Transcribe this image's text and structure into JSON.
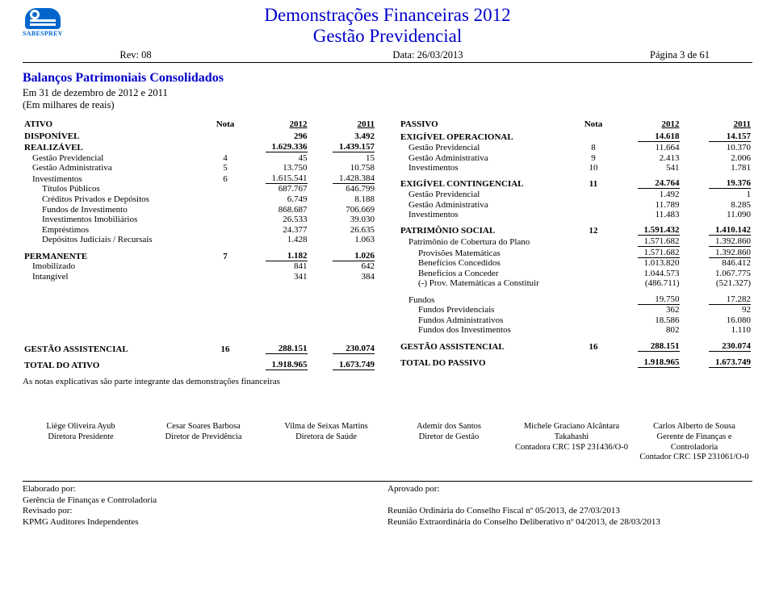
{
  "header": {
    "logo_text": "SABESPREV",
    "title1": "Demonstrações Financeiras 2012",
    "title2": "Gestão Previdencial",
    "rev": "Rev: 08",
    "data": "Data: 26/03/2013",
    "page": "Página 3 de 61"
  },
  "subtitle": "Balanços Patrimoniais Consolidados",
  "sub_line1": "Em 31 de dezembro de 2012 e 2011",
  "sub_line2": "(Em milhares de reais)",
  "ativo": {
    "head": {
      "c1": "ATIVO",
      "c2": "Nota",
      "c3": "2012",
      "c4": "2011"
    },
    "rows": [
      {
        "l": "DISPONÍVEL",
        "n": "",
        "a": "296",
        "b": "3.492",
        "bold": true
      },
      {
        "l": "REALIZÁVEL",
        "n": "",
        "a": "1.629.336",
        "b": "1.439.157",
        "bold": true,
        "ul": true
      },
      {
        "l": "Gestão Previdencial",
        "n": "4",
        "a": "45",
        "b": "15",
        "ind": 1
      },
      {
        "l": "Gestão Administrativa",
        "n": "5",
        "a": "13.750",
        "b": "10.758",
        "ind": 1
      },
      {
        "l": "Investimentos",
        "n": "6",
        "a": "1.615.541",
        "b": "1.428.384",
        "ind": 1,
        "ul": true
      },
      {
        "l": "Títulos Públicos",
        "n": "",
        "a": "687.767",
        "b": "646.799",
        "ind": 2
      },
      {
        "l": "Créditos Privados e Depósitos",
        "n": "",
        "a": "6.749",
        "b": "8.188",
        "ind": 2
      },
      {
        "l": "Fundos de Investimento",
        "n": "",
        "a": "868.687",
        "b": "706.669",
        "ind": 2
      },
      {
        "l": "Investimentos Imobiliários",
        "n": "",
        "a": "26.533",
        "b": "39.030",
        "ind": 2
      },
      {
        "l": "Empréstimos",
        "n": "",
        "a": "24.377",
        "b": "26.635",
        "ind": 2
      },
      {
        "l": "Depósitos Judiciais / Recursais",
        "n": "",
        "a": "1.428",
        "b": "1.063",
        "ind": 2
      },
      {
        "spacer": true
      },
      {
        "l": "PERMANENTE",
        "n": "7",
        "a": "1.182",
        "b": "1.026",
        "bold": true,
        "ul": true
      },
      {
        "l": "Imobilizado",
        "n": "",
        "a": "841",
        "b": "642",
        "ind": 1
      },
      {
        "l": "Intangível",
        "n": "",
        "a": "341",
        "b": "384",
        "ind": 1
      }
    ],
    "gestao": {
      "l": "GESTÃO ASSISTENCIAL",
      "n": "16",
      "a": "288.151",
      "b": "230.074"
    },
    "total": {
      "l": "TOTAL DO ATIVO",
      "a": "1.918.965",
      "b": "1.673.749"
    }
  },
  "passivo": {
    "head": {
      "c1": "PASSIVO",
      "c2": "Nota",
      "c3": "2012",
      "c4": "2011"
    },
    "rows": [
      {
        "l": "EXIGÍVEL OPERACIONAL",
        "n": "",
        "a": "14.618",
        "b": "14.157",
        "bold": true,
        "ul": true
      },
      {
        "l": "Gestão Previdencial",
        "n": "8",
        "a": "11.664",
        "b": "10.370",
        "ind": 1
      },
      {
        "l": "Gestão Administrativa",
        "n": "9",
        "a": "2.413",
        "b": "2.006",
        "ind": 1
      },
      {
        "l": "Investimentos",
        "n": "10",
        "a": "541",
        "b": "1.781",
        "ind": 1
      },
      {
        "spacer": true
      },
      {
        "l": "EXIGÍVEL CONTINGENCIAL",
        "n": "11",
        "a": "24.764",
        "b": "19.376",
        "bold": true,
        "ul": true
      },
      {
        "l": "Gestão Previdencial",
        "n": "",
        "a": "1.492",
        "b": "1",
        "ind": 1
      },
      {
        "l": "Gestão Administrativa",
        "n": "",
        "a": "11.789",
        "b": "8.285",
        "ind": 1
      },
      {
        "l": "Investimentos",
        "n": "",
        "a": "11.483",
        "b": "11.090",
        "ind": 1
      },
      {
        "spacer": true
      },
      {
        "l": "PATRIMÔNIO SOCIAL",
        "n": "12",
        "a": "1.591.432",
        "b": "1.410.142",
        "bold": true,
        "ul": true
      },
      {
        "l": "Patrimônio de Cobertura do Plano",
        "n": "",
        "a": "1.571.682",
        "b": "1.392.860",
        "ind": 1,
        "ul": true
      },
      {
        "l": "Provisões Matemáticas",
        "n": "",
        "a": "1.571.682",
        "b": "1.392.860",
        "ind": 2,
        "ul": true
      },
      {
        "l": "Benefícios Concedidos",
        "n": "",
        "a": "1.013.820",
        "b": "846.412",
        "ind": 2
      },
      {
        "l": "Benefícios a Conceder",
        "n": "",
        "a": "1.044.573",
        "b": "1.067.775",
        "ind": 2
      },
      {
        "l": "(-) Prov. Matemáticas a Constituir",
        "n": "",
        "a": "(486.711)",
        "b": "(521.327)",
        "ind": 2
      },
      {
        "spacer": true
      },
      {
        "l": "Fundos",
        "n": "",
        "a": "19.750",
        "b": "17.282",
        "ind": 1,
        "ul": true
      },
      {
        "l": "Fundos Previdenciais",
        "n": "",
        "a": "362",
        "b": "92",
        "ind": 2
      },
      {
        "l": "Fundos Administrativos",
        "n": "",
        "a": "18.586",
        "b": "16.080",
        "ind": 2
      },
      {
        "l": "Fundos dos Investimentos",
        "n": "",
        "a": "802",
        "b": "1.110",
        "ind": 2
      }
    ],
    "gestao": {
      "l": "GESTÃO ASSISTENCIAL",
      "n": "16",
      "a": "288.151",
      "b": "230.074"
    },
    "total": {
      "l": "TOTAL DO PASSIVO",
      "a": "1.918.965",
      "b": "1.673.749"
    }
  },
  "footnote": "As notas explicativas são parte integrante das demonstrações financeiras",
  "sigs": [
    {
      "name": "Liège Oliveira Ayub",
      "role": "Diretora Presidente"
    },
    {
      "name": "Cesar Soares Barbosa",
      "role": "Diretor de Previdência"
    },
    {
      "name": "Vilma de Seixas Martins",
      "role": "Diretora de Saúde"
    },
    {
      "name": "Ademir dos Santos",
      "role": "Diretor de Gestão"
    },
    {
      "name": "Michele Graciano Alcântara Takahashi",
      "role": "Contadora CRC 1SP 231436/O-0"
    },
    {
      "name": "Carlos Alberto de Sousa",
      "role": "Gerente de Finanças e Controladoria",
      "role2": "Contador CRC 1SP 231061/O-0"
    }
  ],
  "approval": {
    "left": [
      "Elaborado por:",
      "Gerência de Finanças e Controladoria",
      "Revisado por:",
      "KPMG Auditores Independentes"
    ],
    "right": [
      "Aprovado por:",
      "",
      "Reunião Ordinária do Conselho Fiscal nº 05/2013, de 27/03/2013",
      "Reunião Extraordinária do Conselho Deliberativo nº 04/2013, de 28/03/2013"
    ]
  }
}
